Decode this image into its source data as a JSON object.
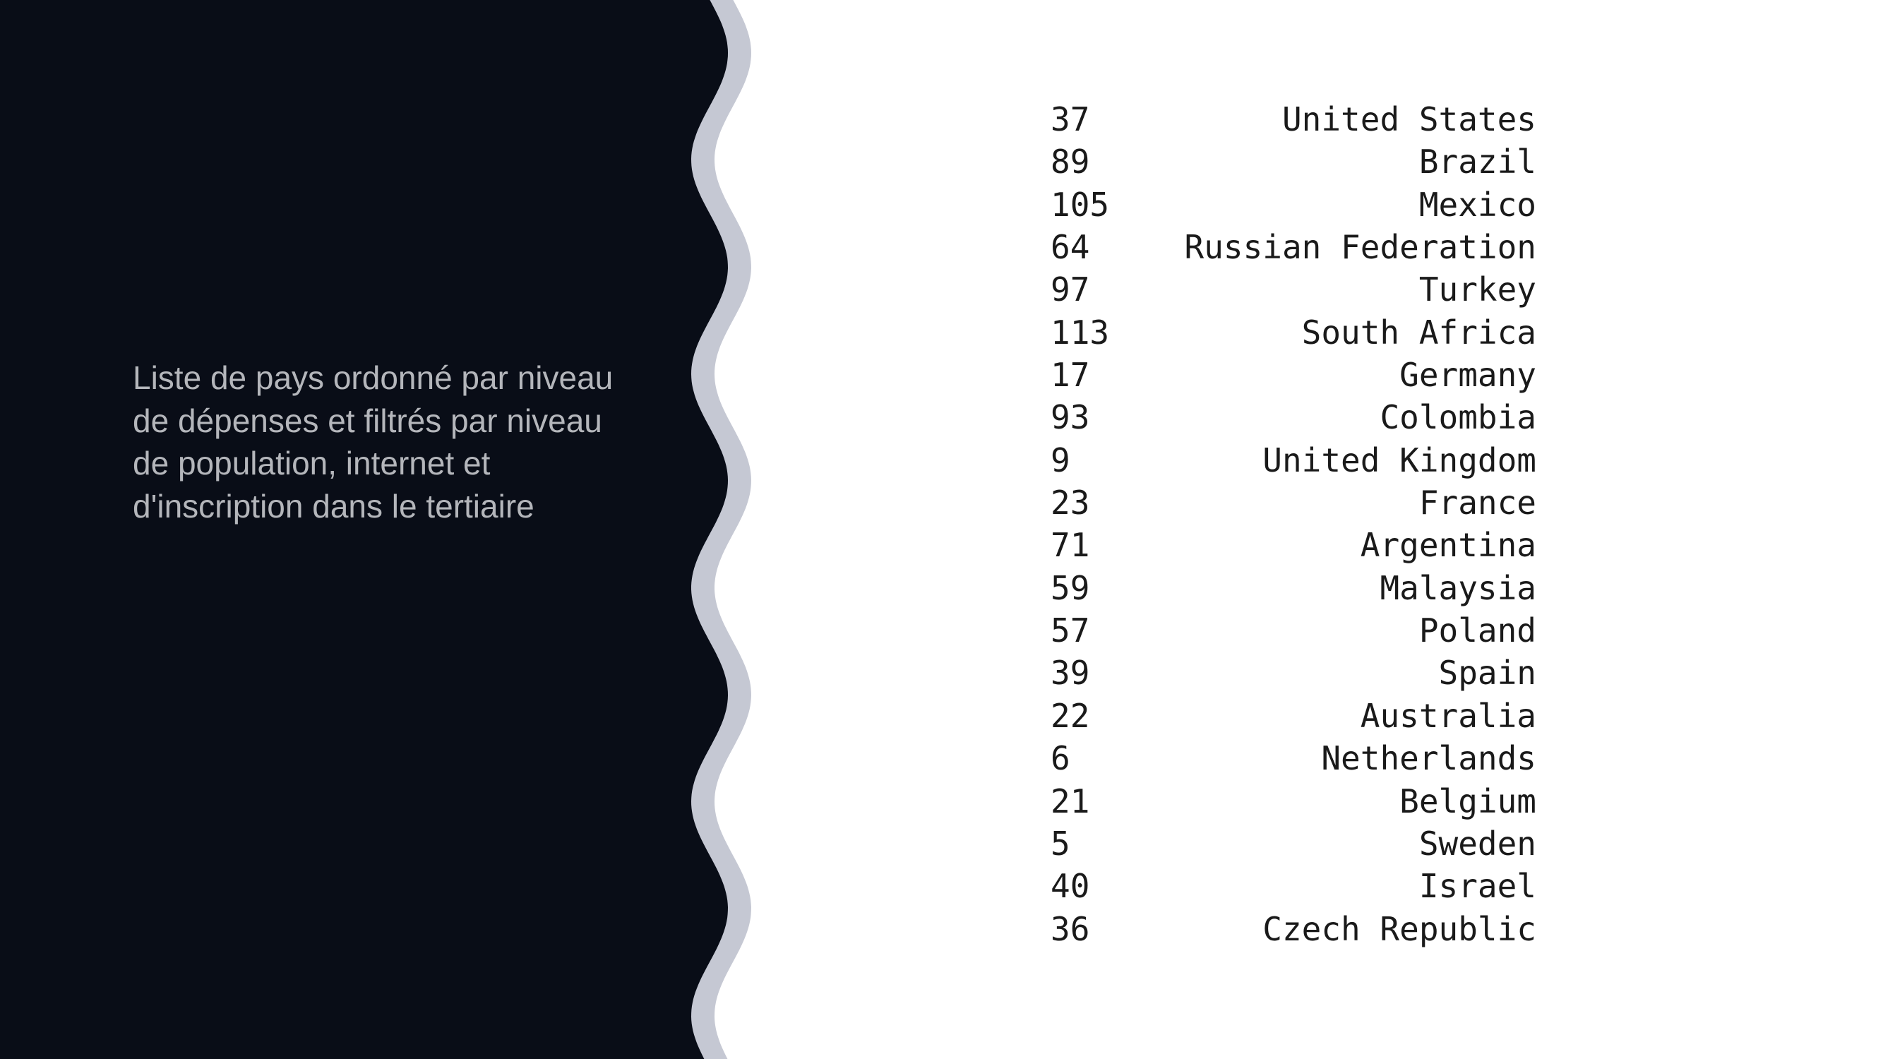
{
  "caption": "Liste de pays ordonné par niveau de dépenses et filtrés par niveau de population, internet et d'inscription dans le tertiaire",
  "colors": {
    "panel_background": "#090d17",
    "wave_border": "#c5c8d3",
    "caption_text": "#b4b6bb",
    "listing_text": "#1a1a1a",
    "page_background": "#ffffff"
  },
  "rows": [
    {
      "index": "37",
      "country": "United States"
    },
    {
      "index": "89",
      "country": "Brazil"
    },
    {
      "index": "105",
      "country": "Mexico"
    },
    {
      "index": "64",
      "country": "Russian Federation"
    },
    {
      "index": "97",
      "country": "Turkey"
    },
    {
      "index": "113",
      "country": "South Africa"
    },
    {
      "index": "17",
      "country": "Germany"
    },
    {
      "index": "93",
      "country": "Colombia"
    },
    {
      "index": "9",
      "country": "United Kingdom"
    },
    {
      "index": "23",
      "country": "France"
    },
    {
      "index": "71",
      "country": "Argentina"
    },
    {
      "index": "59",
      "country": "Malaysia"
    },
    {
      "index": "57",
      "country": "Poland"
    },
    {
      "index": "39",
      "country": "Spain"
    },
    {
      "index": "22",
      "country": "Australia"
    },
    {
      "index": "6",
      "country": "Netherlands"
    },
    {
      "index": "21",
      "country": "Belgium"
    },
    {
      "index": "5",
      "country": "Sweden"
    },
    {
      "index": "40",
      "country": "Israel"
    },
    {
      "index": "36",
      "country": "Czech Republic"
    }
  ]
}
